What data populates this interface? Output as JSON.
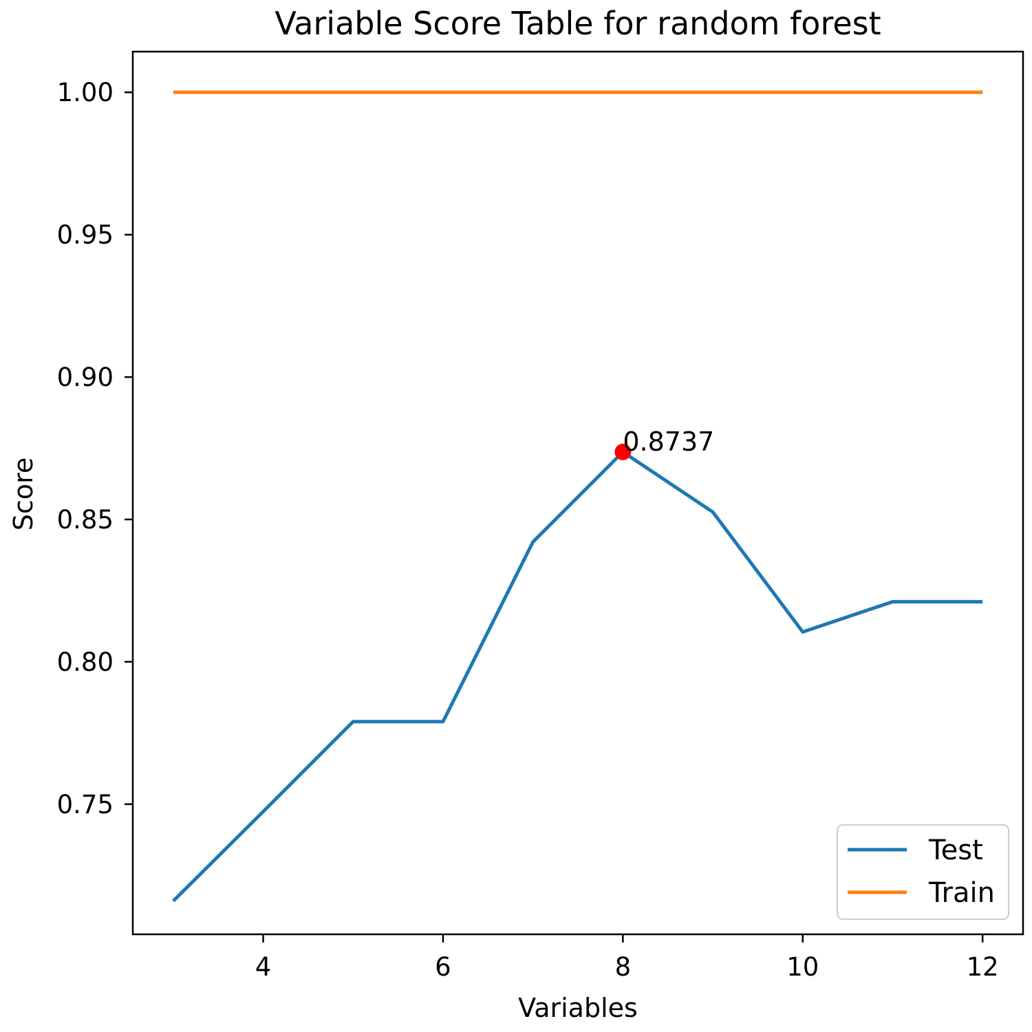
{
  "chart_data": {
    "type": "line",
    "title": "Variable Score Table for random forest",
    "xlabel": "Variables",
    "ylabel": "Score",
    "xlim": [
      2.55,
      12.45
    ],
    "ylim": [
      0.7043,
      1.0143
    ],
    "xticks": [
      4,
      6,
      8,
      10,
      12
    ],
    "xtick_labels": [
      "4",
      "6",
      "8",
      "10",
      "12"
    ],
    "yticks": [
      0.75,
      0.8,
      0.85,
      0.9,
      0.95,
      1.0
    ],
    "ytick_labels": [
      "0.75",
      "0.80",
      "0.85",
      "0.90",
      "0.95",
      "1.00"
    ],
    "grid": false,
    "legend_position": "lower-right",
    "x": [
      3,
      4,
      5,
      6,
      7,
      8,
      9,
      10,
      11,
      12
    ],
    "series": [
      {
        "name": "Test",
        "color": "#1f77b4",
        "values": [
          0.716,
          0.7474,
          0.779,
          0.779,
          0.8421,
          0.8737,
          0.8526,
          0.8105,
          0.8211,
          0.8211
        ]
      },
      {
        "name": "Train",
        "color": "#ff7f0e",
        "values": [
          1.0,
          1.0,
          1.0,
          1.0,
          1.0,
          1.0,
          1.0,
          1.0,
          1.0,
          1.0
        ]
      }
    ],
    "annotation": {
      "x": 8,
      "y": 0.8737,
      "text": "0.8737",
      "marker_color": "#ff0000"
    }
  }
}
